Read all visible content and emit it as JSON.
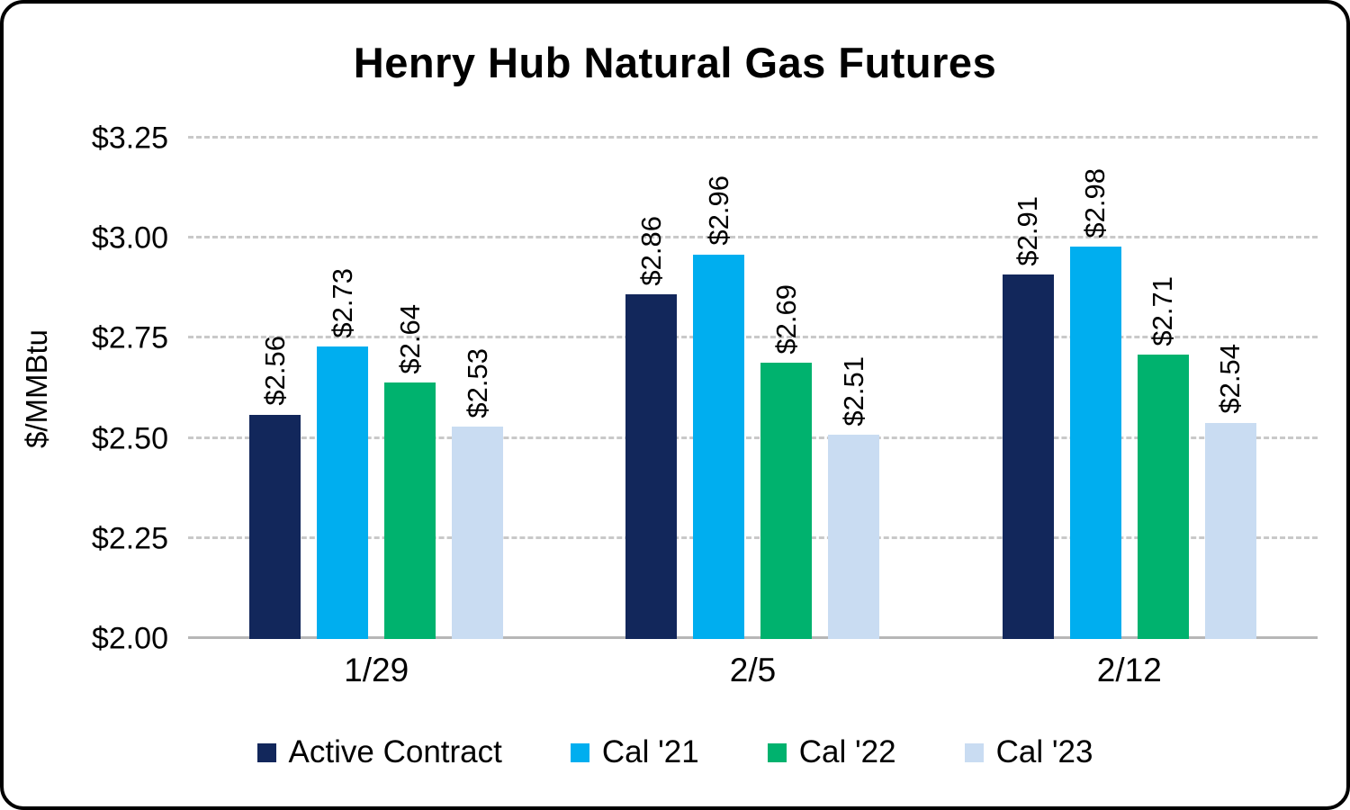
{
  "chart_data": {
    "type": "bar",
    "title": "Henry Hub Natural Gas Futures",
    "ylabel": "$/MMBtu",
    "xlabel": "",
    "ylim": [
      2.0,
      3.25
    ],
    "y_ticks": [
      {
        "value": 2.0,
        "label": "$2.00"
      },
      {
        "value": 2.25,
        "label": "$2.25"
      },
      {
        "value": 2.5,
        "label": "$2.50"
      },
      {
        "value": 2.75,
        "label": "$2.75"
      },
      {
        "value": 3.0,
        "label": "$3.00"
      },
      {
        "value": 3.25,
        "label": "$3.25"
      }
    ],
    "categories": [
      "1/29",
      "2/5",
      "2/12"
    ],
    "series": [
      {
        "name": "Active Contract",
        "color": "#12275B",
        "values": [
          2.56,
          2.86,
          2.91
        ],
        "labels": [
          "$2.56",
          "$2.86",
          "$2.91"
        ]
      },
      {
        "name": "Cal '21",
        "color": "#00AEEF",
        "values": [
          2.73,
          2.96,
          2.98
        ],
        "labels": [
          "$2.73",
          "$2.96",
          "$2.98"
        ]
      },
      {
        "name": "Cal '22",
        "color": "#00B26E",
        "values": [
          2.64,
          2.69,
          2.71
        ],
        "labels": [
          "$2.64",
          "$2.69",
          "$2.71"
        ]
      },
      {
        "name": "Cal '23",
        "color": "#C9DCF2",
        "values": [
          2.53,
          2.51,
          2.54
        ],
        "labels": [
          "$2.53",
          "$2.51",
          "$2.54"
        ]
      }
    ],
    "legend_position": "bottom",
    "grid": "horizontal-dashed"
  }
}
